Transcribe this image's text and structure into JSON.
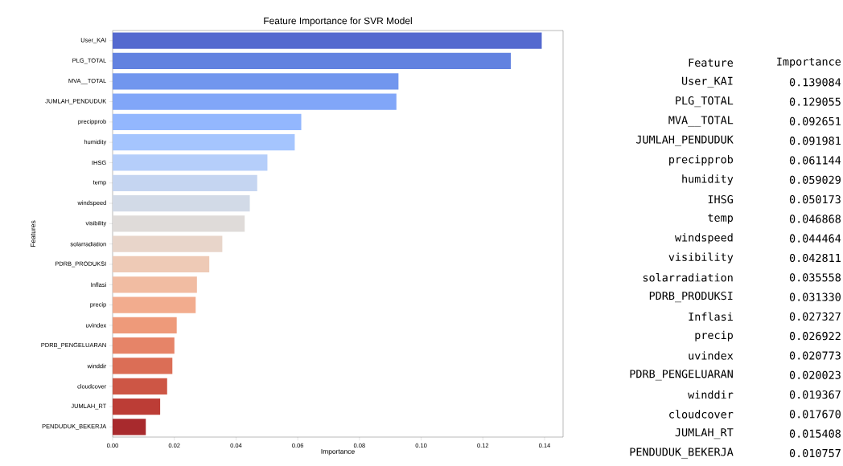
{
  "chart_data": [
    {
      "type": "bar",
      "orientation": "horizontal",
      "title": "Feature Importance for SVR Model",
      "xlabel": "Importance",
      "ylabel": "Features",
      "categories": [
        "User_KAI",
        "PLG_TOTAL",
        "MVA__TOTAL",
        "JUMLAH_PENDUDUK",
        "precipprob",
        "humidity",
        "IHSG",
        "temp",
        "windspeed",
        "visibility",
        "solarradiation",
        "PDRB_PRODUKSI",
        "Inflasi",
        "precip",
        "uvindex",
        "PDRB_PENGELUARAN",
        "winddir",
        "cloudcover",
        "JUMLAH_RT",
        "PENDUDUK_BEKERJA"
      ],
      "values": [
        0.139084,
        0.129055,
        0.092651,
        0.091981,
        0.061144,
        0.059029,
        0.050173,
        0.046868,
        0.044464,
        0.042811,
        0.035558,
        0.03133,
        0.027327,
        0.026922,
        0.020773,
        0.020023,
        0.019367,
        0.01767,
        0.015408,
        0.010757
      ],
      "colors": [
        "#5469cf",
        "#6282e0",
        "#7196ee",
        "#81a6f8",
        "#93b7fe",
        "#a5c5fe",
        "#b5cefa",
        "#c5d5f1",
        "#d2dae7",
        "#dfdbd9",
        "#e8d5ca",
        "#eecab6",
        "#f1bca2",
        "#f2ac8e",
        "#ee9a7a",
        "#e68468",
        "#db6e56",
        "#cd5645",
        "#bc3d36",
        "#a82a2d"
      ],
      "xlim": [
        0,
        0.146
      ],
      "xticks": [
        {
          "value": 0,
          "label": "0.00"
        },
        {
          "value": 0.02,
          "label": "0.02"
        },
        {
          "value": 0.04,
          "label": "0.04"
        },
        {
          "value": 0.06,
          "label": "0.06"
        },
        {
          "value": 0.08,
          "label": "0.08"
        },
        {
          "value": 0.1,
          "label": "0.10"
        },
        {
          "value": 0.12,
          "label": "0.12"
        },
        {
          "value": 0.14,
          "label": "0.14"
        }
      ]
    },
    {
      "type": "other",
      "annotations": [
        "Feature",
        "Importance",
        "User_KAI",
        "0.139084",
        "PLG_TOTAL",
        "0.129055",
        "MVA__TOTAL",
        "0.092651",
        "JUMLAH_PENDUDUK",
        "0.091981",
        "precipprob",
        "0.061144",
        "humidity",
        "0.059029",
        "IHSG",
        "0.050173",
        "temp",
        "0.046868",
        "windspeed",
        "0.044464",
        "visibility",
        "0.042811",
        "solarradiation",
        "0.035558",
        "PDRB_PRODUKSI",
        "0.031330",
        "Inflasi",
        "0.027327",
        "precip",
        "0.026922",
        "uvindex",
        "0.020773",
        "PDRB_PENGELUARAN",
        "0.020023",
        "winddir",
        "0.019367",
        "cloudcover",
        "0.017670",
        "JUMLAH_RT",
        "0.015408",
        "PENDUDUK_BEKERJA",
        "0.010757"
      ]
    }
  ]
}
